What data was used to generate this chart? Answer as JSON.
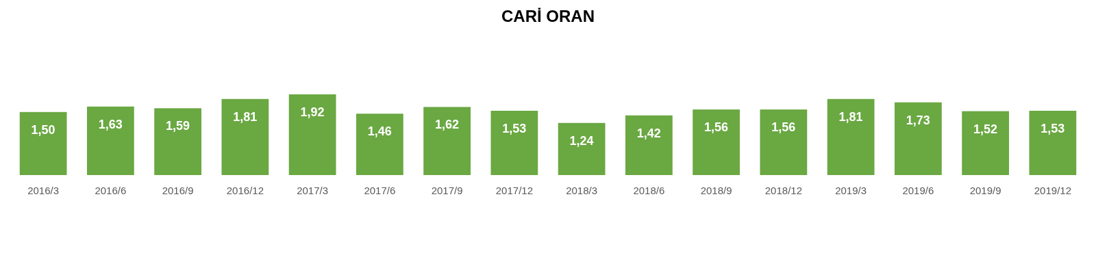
{
  "chart_data": {
    "type": "bar",
    "title": "CARİ ORAN",
    "categories": [
      "2016/3",
      "2016/6",
      "2016/9",
      "2016/12",
      "2017/3",
      "2017/6",
      "2017/9",
      "2017/12",
      "2018/3",
      "2018/6",
      "2018/9",
      "2018/12",
      "2019/3",
      "2019/6",
      "2019/9",
      "2019/12"
    ],
    "values": [
      1.5,
      1.63,
      1.59,
      1.81,
      1.92,
      1.46,
      1.62,
      1.53,
      1.24,
      1.42,
      1.56,
      1.56,
      1.81,
      1.73,
      1.52,
      1.53
    ],
    "value_labels": [
      "1,50",
      "1,63",
      "1,59",
      "1,81",
      "1,92",
      "1,46",
      "1,62",
      "1,53",
      "1,24",
      "1,42",
      "1,56",
      "1,56",
      "1,81",
      "1,73",
      "1,52",
      "1,53"
    ],
    "color": "#6aa842"
  }
}
